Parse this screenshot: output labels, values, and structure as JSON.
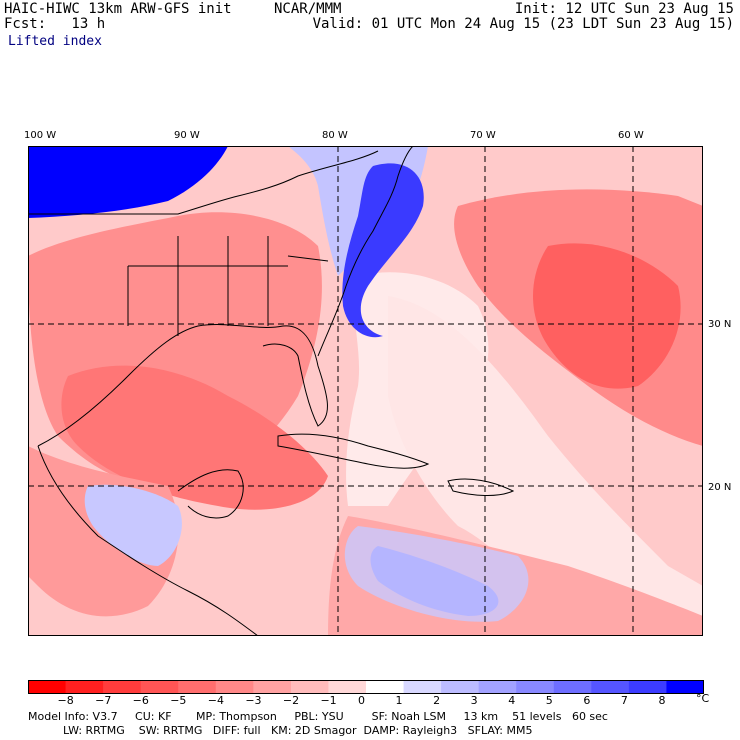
{
  "header": {
    "model_line": "HAIC-HIWC 13km ARW-GFS init",
    "org": "NCAR/MMM",
    "fcst_line": "Fcst:   13 h",
    "init_line": "Init: 12 UTC Sun 23 Aug 15",
    "valid_line": "Valid: 01 UTC Mon 24 Aug 15 (23 LDT Sun 23 Aug 15)",
    "field_name": "Lifted index"
  },
  "map": {
    "lon_labels": [
      "100 W",
      "90 W",
      "80 W",
      "70 W",
      "60 W"
    ],
    "lat_labels": [
      "30 N",
      "20 N"
    ],
    "colors": {
      "strong_red": "#ff0000",
      "mid_red": "#f55",
      "light_red": "#ffb3b3",
      "very_light_red": "#ffdada",
      "white": "#ffffff",
      "light_blue": "#d6d6ff",
      "mid_blue": "#7a7aff",
      "strong_blue": "#0000ff",
      "deep_blue": "#0000e6",
      "coast": "#000000"
    }
  },
  "colorbar": {
    "units": "°C",
    "tick_labels": [
      "−8",
      "−7",
      "−6",
      "−5",
      "−4",
      "−3",
      "−2",
      "−1",
      "0",
      "1",
      "2",
      "3",
      "4",
      "5",
      "6",
      "7",
      "8"
    ],
    "colors": [
      "#ff0000",
      "#ff2020",
      "#ff3c3c",
      "#ff5555",
      "#ff6e6e",
      "#ff8888",
      "#ffa2a2",
      "#ffbcbc",
      "#ffd8d8",
      "#ffffff",
      "#d8d8ff",
      "#bcbcff",
      "#a2a2ff",
      "#8888ff",
      "#6e6eff",
      "#5555ff",
      "#3c3cff",
      "#0000ff"
    ]
  },
  "model_info": {
    "line1": "Model Info: V3.7     CU: KF       MP: Thompson     PBL: YSU        SF: Noah LSM     13 km    51 levels   60 sec",
    "line2": "          LW: RRTMG    SW: RRTMG   DIFF: full   KM: 2D Smagor  DAMP: Rayleigh3   SFLAY: MM5"
  }
}
